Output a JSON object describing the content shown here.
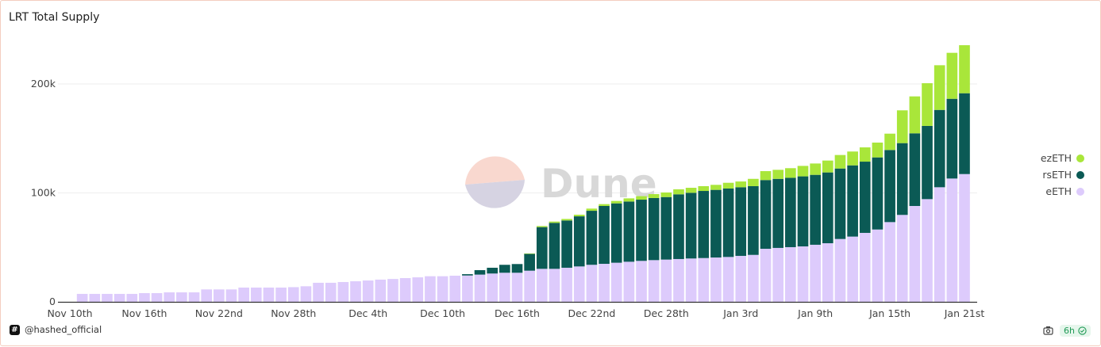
{
  "chart_data": {
    "type": "bar",
    "stacked": true,
    "title": "LRT Total Supply",
    "xlabel": "",
    "ylabel": "",
    "ylim": [
      0,
      200000
    ],
    "y_ticks": [
      {
        "value": 0,
        "label": "0"
      },
      {
        "value": 100000,
        "label": "100k"
      },
      {
        "value": 200000,
        "label": "200k"
      }
    ],
    "grid": true,
    "legend_position": "right",
    "x_domain_start": "Nov 10",
    "x_ticks": [
      {
        "day": 0,
        "label": "Nov 10th"
      },
      {
        "day": 6,
        "label": "Nov 16th"
      },
      {
        "day": 12,
        "label": "Nov 22nd"
      },
      {
        "day": 18,
        "label": "Nov 28th"
      },
      {
        "day": 24,
        "label": "Dec 4th"
      },
      {
        "day": 30,
        "label": "Dec 10th"
      },
      {
        "day": 36,
        "label": "Dec 16th"
      },
      {
        "day": 42,
        "label": "Dec 22nd"
      },
      {
        "day": 48,
        "label": "Dec 28th"
      },
      {
        "day": 54,
        "label": "Jan 3rd"
      },
      {
        "day": 60,
        "label": "Jan 9th"
      },
      {
        "day": 66,
        "label": "Jan 15th"
      },
      {
        "day": 72,
        "label": "Jan 21st"
      }
    ],
    "categories": [
      "Nov 11",
      "Nov 12",
      "Nov 13",
      "Nov 14",
      "Nov 15",
      "Nov 16",
      "Nov 17",
      "Nov 18",
      "Nov 19",
      "Nov 20",
      "Nov 21",
      "Nov 22",
      "Nov 23",
      "Nov 24",
      "Nov 25",
      "Nov 26",
      "Nov 27",
      "Nov 28",
      "Nov 29",
      "Nov 30",
      "Dec 1",
      "Dec 2",
      "Dec 3",
      "Dec 4",
      "Dec 5",
      "Dec 6",
      "Dec 7",
      "Dec 8",
      "Dec 9",
      "Dec 10",
      "Dec 11",
      "Dec 12",
      "Dec 13",
      "Dec 14",
      "Dec 15",
      "Dec 16",
      "Dec 17",
      "Dec 18",
      "Dec 19",
      "Dec 20",
      "Dec 21",
      "Dec 22",
      "Dec 23",
      "Dec 24",
      "Dec 25",
      "Dec 26",
      "Dec 27",
      "Dec 28",
      "Dec 29",
      "Dec 30",
      "Dec 31",
      "Jan 1",
      "Jan 2",
      "Jan 3",
      "Jan 4",
      "Jan 5",
      "Jan 6",
      "Jan 7",
      "Jan 8",
      "Jan 9",
      "Jan 10",
      "Jan 11",
      "Jan 12",
      "Jan 13",
      "Jan 14",
      "Jan 15",
      "Jan 16",
      "Jan 17",
      "Jan 18",
      "Jan 19",
      "Jan 20",
      "Jan 21"
    ],
    "series": [
      {
        "name": "eETH",
        "color": "#ddcbfc",
        "values": [
          7300,
          7300,
          7300,
          7300,
          7300,
          8000,
          8000,
          8700,
          8700,
          8700,
          11400,
          11400,
          11400,
          13100,
          13100,
          13100,
          13100,
          13500,
          14300,
          17500,
          17500,
          18200,
          18900,
          19600,
          20400,
          21000,
          21800,
          22500,
          23500,
          23500,
          24000,
          24200,
          25000,
          26000,
          26700,
          26700,
          28600,
          30300,
          30300,
          31300,
          32500,
          34000,
          34900,
          35900,
          36800,
          37600,
          38300,
          38800,
          39300,
          39800,
          40200,
          40700,
          41200,
          42200,
          43100,
          48700,
          49500,
          50200,
          50900,
          52400,
          53800,
          57700,
          59900,
          63300,
          66400,
          73200,
          79800,
          88000,
          94300,
          105200,
          113200,
          117300
        ]
      },
      {
        "name": "rsETH",
        "color": "#0b5a55",
        "values": [
          0,
          0,
          0,
          0,
          0,
          0,
          0,
          0,
          0,
          0,
          0,
          0,
          0,
          0,
          0,
          0,
          0,
          0,
          0,
          0,
          0,
          0,
          0,
          0,
          0,
          0,
          0,
          0,
          0,
          0,
          0,
          1200,
          4100,
          5300,
          7300,
          8000,
          15500,
          38300,
          42200,
          43400,
          46000,
          49600,
          53100,
          54500,
          55300,
          56200,
          57000,
          57400,
          59400,
          60300,
          61600,
          62100,
          62800,
          63000,
          63100,
          63100,
          63400,
          63700,
          64300,
          64200,
          65000,
          64700,
          65400,
          65400,
          66200,
          66200,
          65900,
          66700,
          67200,
          71000,
          73200,
          74200
        ]
      },
      {
        "name": "ezETH",
        "color": "#a9e63a",
        "values": [
          0,
          0,
          0,
          0,
          0,
          0,
          0,
          0,
          0,
          0,
          0,
          0,
          0,
          0,
          0,
          0,
          0,
          0,
          0,
          0,
          0,
          0,
          0,
          0,
          0,
          0,
          0,
          0,
          0,
          0,
          0,
          0,
          0,
          0,
          0,
          0,
          300,
          1000,
          1200,
          1400,
          1500,
          2000,
          1700,
          2200,
          2900,
          3200,
          3600,
          4200,
          4600,
          4600,
          4400,
          4600,
          5300,
          5300,
          6700,
          8200,
          8300,
          8800,
          9600,
          10400,
          10900,
          12400,
          12700,
          13100,
          13600,
          15000,
          30100,
          33900,
          39200,
          41000,
          42200,
          44100
        ]
      }
    ],
    "legend": [
      "ezETH",
      "rsETH",
      "eETH"
    ]
  },
  "watermark": "Dune",
  "footer": {
    "author": "@hashed_official",
    "hash_glyph": "#",
    "refresh": "6h"
  }
}
